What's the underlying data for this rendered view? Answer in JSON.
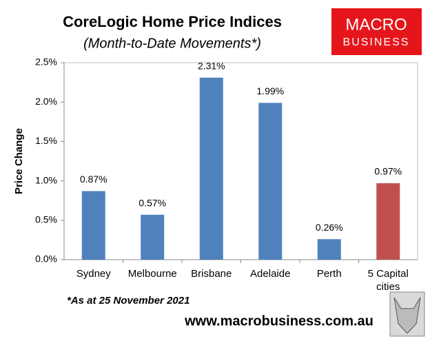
{
  "chart_data": {
    "type": "bar",
    "title": "CoreLogic Home Price Indices",
    "subtitle": "(Month-to-Date Movements*)",
    "y_label": "Price Change",
    "footnote": "*As at 25 November 2021",
    "website": "www.macrobusiness.com.au",
    "logo": [
      "MACRO",
      "BUSINESS"
    ],
    "categories": [
      "Sydney",
      "Melbourne",
      "Brisbane",
      "Adelaide",
      "Perth",
      "5 Capital cities"
    ],
    "values": [
      0.87,
      0.57,
      2.31,
      1.99,
      0.26,
      0.97
    ],
    "value_labels": [
      "0.87%",
      "0.57%",
      "2.31%",
      "1.99%",
      "0.26%",
      "0.97%"
    ],
    "colors": [
      "#4f81bd",
      "#4f81bd",
      "#4f81bd",
      "#4f81bd",
      "#4f81bd",
      "#c0504d"
    ],
    "ylim": [
      0,
      2.5
    ],
    "yticks": [
      {
        "value": 0,
        "label": "0.0%"
      },
      {
        "value": 0.5,
        "label": "0.5%"
      },
      {
        "value": 1,
        "label": "1.0%"
      },
      {
        "value": 1.5,
        "label": "1.5%"
      },
      {
        "value": 2,
        "label": "2.0%"
      },
      {
        "value": 2.5,
        "label": "2.5%"
      }
    ],
    "grid": false
  }
}
